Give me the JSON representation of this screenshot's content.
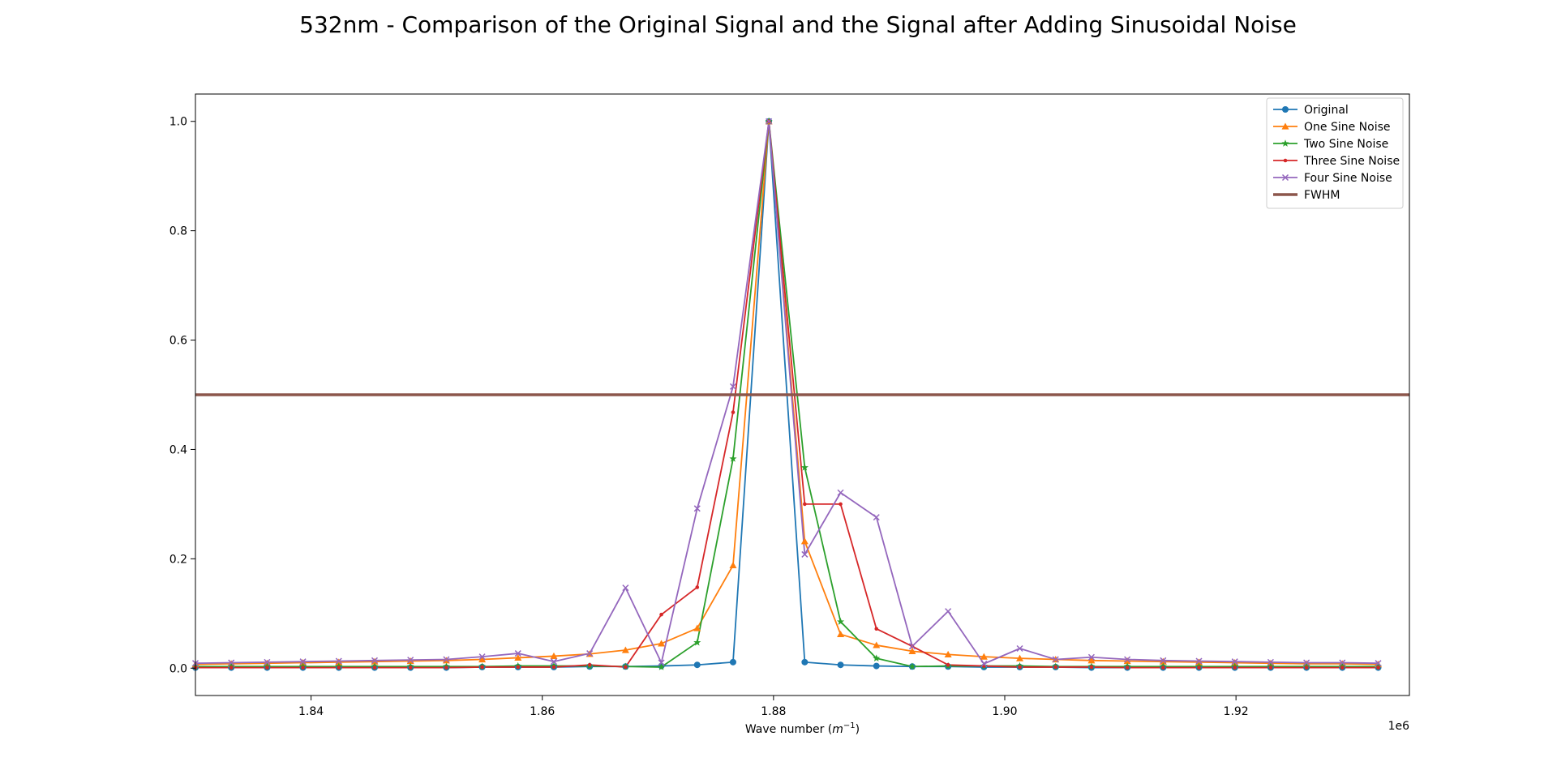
{
  "chart_data": {
    "type": "line",
    "title": "532nm - Comparison of the Original Signal and the Signal after Adding Sinusoidal Noise",
    "xlabel": "Wave number (",
    "xlabel_math": "m",
    "xlabel_sup": "−1",
    "xlabel_close": ")",
    "x_offset_text": "1e6",
    "xlim": [
      1830000,
      1935000
    ],
    "ylim": [
      -0.05,
      1.05
    ],
    "x_ticks": [
      1840000,
      1860000,
      1880000,
      1900000,
      1920000
    ],
    "x_tick_labels": [
      "1.84",
      "1.86",
      "1.88",
      "1.90",
      "1.92"
    ],
    "y_ticks": [
      0.0,
      0.2,
      0.4,
      0.6,
      0.8,
      1.0
    ],
    "y_tick_labels": [
      "0.0",
      "0.2",
      "0.4",
      "0.6",
      "0.8",
      "1.0"
    ],
    "grid": false,
    "legend_position": "top-right",
    "x": [
      1830000,
      1833100,
      1836200,
      1839300,
      1842400,
      1845500,
      1848600,
      1851700,
      1854800,
      1857900,
      1861000,
      1864100,
      1867200,
      1870300,
      1873400,
      1876500,
      1879600,
      1882700,
      1885800,
      1888900,
      1892000,
      1895100,
      1898200,
      1901300,
      1904400,
      1907500,
      1910600,
      1913700,
      1916800,
      1919900,
      1923000,
      1926100,
      1929200,
      1932300
    ],
    "series": [
      {
        "name": "Original",
        "color": "#1f77b4",
        "marker": "circle",
        "values": [
          0.001,
          0.001,
          0.001,
          0.001,
          0.001,
          0.001,
          0.001,
          0.001,
          0.002,
          0.002,
          0.002,
          0.003,
          0.003,
          0.004,
          0.006,
          0.011,
          1.0,
          0.011,
          0.006,
          0.004,
          0.003,
          0.003,
          0.002,
          0.002,
          0.002,
          0.001,
          0.001,
          0.001,
          0.001,
          0.001,
          0.001,
          0.001,
          0.001,
          0.001
        ]
      },
      {
        "name": "One Sine Noise",
        "color": "#ff7f0e",
        "marker": "triangle",
        "values": [
          0.007,
          0.008,
          0.009,
          0.01,
          0.011,
          0.012,
          0.013,
          0.014,
          0.016,
          0.019,
          0.022,
          0.026,
          0.033,
          0.045,
          0.073,
          0.188,
          1.0,
          0.232,
          0.062,
          0.042,
          0.031,
          0.025,
          0.021,
          0.018,
          0.016,
          0.014,
          0.013,
          0.012,
          0.011,
          0.01,
          0.009,
          0.008,
          0.008,
          0.007
        ]
      },
      {
        "name": "Two Sine Noise",
        "color": "#2ca02c",
        "marker": "star",
        "values": [
          0.003,
          0.003,
          0.003,
          0.003,
          0.003,
          0.003,
          0.003,
          0.003,
          0.003,
          0.004,
          0.004,
          0.004,
          0.003,
          0.002,
          0.047,
          0.383,
          1.0,
          0.367,
          0.085,
          0.018,
          0.003,
          0.004,
          0.004,
          0.004,
          0.003,
          0.003,
          0.003,
          0.003,
          0.003,
          0.003,
          0.003,
          0.003,
          0.003,
          0.003
        ]
      },
      {
        "name": "Three Sine Noise",
        "color": "#d62728",
        "marker": "point",
        "values": [
          0.001,
          0.001,
          0.001,
          0.001,
          0.001,
          0.001,
          0.001,
          0.001,
          0.002,
          0.002,
          0.002,
          0.006,
          0.002,
          0.098,
          0.148,
          0.468,
          1.0,
          0.3,
          0.3,
          0.072,
          0.04,
          0.006,
          0.004,
          0.002,
          0.002,
          0.002,
          0.001,
          0.001,
          0.001,
          0.001,
          0.001,
          0.001,
          0.001,
          0.001
        ]
      },
      {
        "name": "Four Sine Noise",
        "color": "#9467bd",
        "marker": "x",
        "values": [
          0.009,
          0.01,
          0.011,
          0.012,
          0.013,
          0.014,
          0.015,
          0.016,
          0.021,
          0.027,
          0.012,
          0.027,
          0.147,
          0.01,
          0.292,
          0.515,
          1.0,
          0.208,
          0.321,
          0.276,
          0.04,
          0.104,
          0.008,
          0.036,
          0.016,
          0.02,
          0.016,
          0.014,
          0.013,
          0.012,
          0.011,
          0.01,
          0.01,
          0.009
        ]
      }
    ],
    "fwhm": {
      "name": "FWHM",
      "color": "#8c564b",
      "value": 0.5
    }
  }
}
